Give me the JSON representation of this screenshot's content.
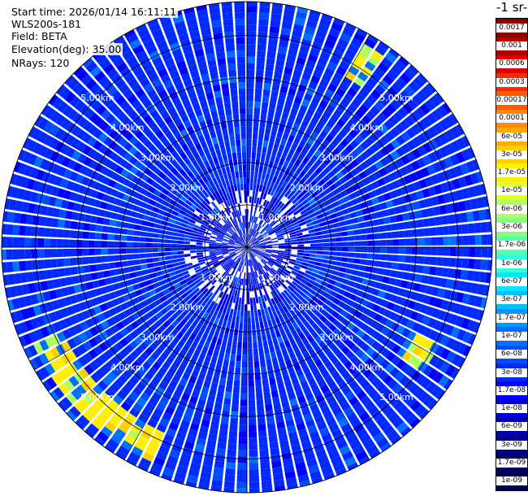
{
  "header": {
    "start_time": "Start time: 2026/01/14 16:11:11",
    "instrument": "WLS200s-181",
    "field": "Field: BETA",
    "elevation": "Elevation(deg): 35.00",
    "nrays": "NRays: 120"
  },
  "chart_data": {
    "type": "ppi_polar_heatmap",
    "field": "BETA",
    "n_rays": 120,
    "elevation_deg": 35.0,
    "range_rings_km": [
      1,
      2,
      3,
      4,
      5
    ],
    "range_ring_labels": [
      "1.00km",
      "2.00km",
      "3.00km",
      "4.00km",
      "5.00km"
    ],
    "max_range_km": 5.8,
    "colorbar": {
      "title": "-1 sr-",
      "scale": "log",
      "tick_labels": [
        "0.0017",
        "0.001",
        "0.0006",
        "0.0003",
        "0.00017",
        "0.0001",
        "6e-05",
        "3e-05",
        "1.7e-05",
        "1e-05",
        "6e-06",
        "3e-06",
        "1.7e-06",
        "1e-06",
        "6e-07",
        "3e-07",
        "1.7e-07",
        "1e-07",
        "6e-08",
        "3e-08",
        "1.7e-08",
        "1e-08",
        "6e-09",
        "3e-09",
        "1.7e-09",
        "1e-09"
      ],
      "colors": [
        "#8b0000",
        "#b00000",
        "#dd0000",
        "#ff2a00",
        "#ff5a00",
        "#ff8a00",
        "#ffaa00",
        "#ffd000",
        "#fff000",
        "#e0ff30",
        "#b0ff60",
        "#80ff80",
        "#50ffb0",
        "#30ffe0",
        "#00e8ff",
        "#00c0ff",
        "#0098ff",
        "#0070ff",
        "#004cff",
        "#0028ff",
        "#0000ff",
        "#0000d8",
        "#0000b0",
        "#000090",
        "#00006c",
        "#000050"
      ]
    },
    "background_level": "3e-08",
    "enhanced_regions": [
      {
        "azimuth_deg": [
          30,
          36
        ],
        "range_km": [
          4.7,
          5.5
        ],
        "level": "1.7e-05"
      },
      {
        "azimuth_deg": [
          88,
          90
        ],
        "range_km": [
          4.6,
          5.0
        ],
        "level": "1.7e-05"
      },
      {
        "azimuth_deg": [
          118,
          126
        ],
        "range_km": [
          4.3,
          5.1
        ],
        "level": "1.7e-05"
      },
      {
        "azimuth_deg": [
          205,
          245
        ],
        "range_km": [
          4.8,
          5.5
        ],
        "level": "1.7e-05"
      }
    ]
  }
}
